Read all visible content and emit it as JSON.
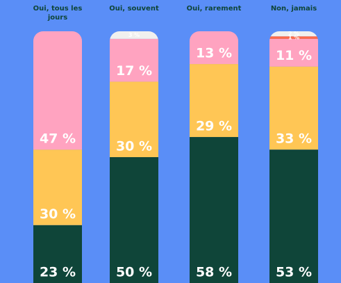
{
  "chart_data": {
    "type": "stacked_bar",
    "categories": [
      "Oui, tous les jours",
      "Oui, souvent",
      "Oui, rarement",
      "Non, jamais"
    ],
    "ylim": [
      0,
      100
    ],
    "series": [
      {
        "color": "#0f4539",
        "values": [
          23,
          50,
          58,
          53
        ],
        "value_labels": [
          "23 %",
          "50 %",
          "58 %",
          "53 %"
        ]
      },
      {
        "color": "#ffc655",
        "values": [
          30,
          30,
          29,
          33
        ],
        "value_labels": [
          "30 %",
          "30 %",
          "29 %",
          "33 %"
        ]
      },
      {
        "color": "#ffa3c0",
        "values": [
          47,
          17,
          13,
          11
        ],
        "value_labels": [
          "47 %",
          "17 %",
          "13 %",
          "11 %"
        ]
      },
      {
        "color": "#ff6b4a",
        "values": [
          null,
          null,
          null,
          1
        ],
        "value_labels": [
          null,
          null,
          null,
          "1 %"
        ]
      },
      {
        "color": "#f0f0ee",
        "values": [
          null,
          3,
          null,
          2
        ],
        "value_labels": [
          null,
          "3 %",
          null,
          "2 %"
        ]
      }
    ]
  }
}
